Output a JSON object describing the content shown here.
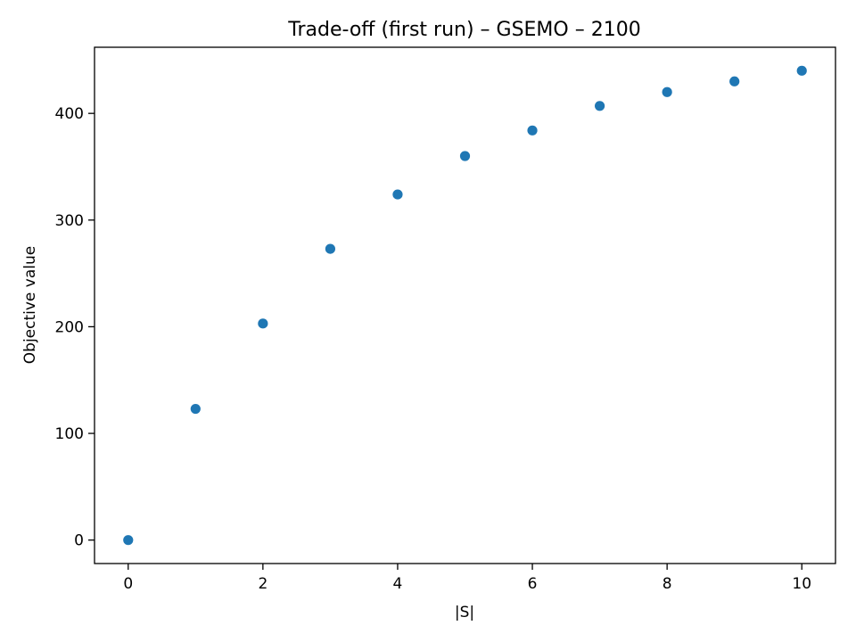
{
  "chart_data": {
    "type": "scatter",
    "title": "Trade-off (first run) – GSEMO – 2100",
    "xlabel": "|S|",
    "ylabel": "Objective value",
    "xlim": [
      -0.5,
      10.5
    ],
    "ylim": [
      -22,
      462
    ],
    "xticks": [
      0,
      2,
      4,
      6,
      8,
      10
    ],
    "yticks": [
      0,
      100,
      200,
      300,
      400
    ],
    "grid": false,
    "legend": "none",
    "color": "#1f77b4",
    "series": [
      {
        "x": [
          0,
          1,
          2,
          3,
          4,
          5,
          6,
          7,
          8,
          9,
          10
        ],
        "y": [
          0,
          123,
          203,
          273,
          324,
          360,
          384,
          407,
          420,
          430,
          440
        ]
      }
    ]
  }
}
